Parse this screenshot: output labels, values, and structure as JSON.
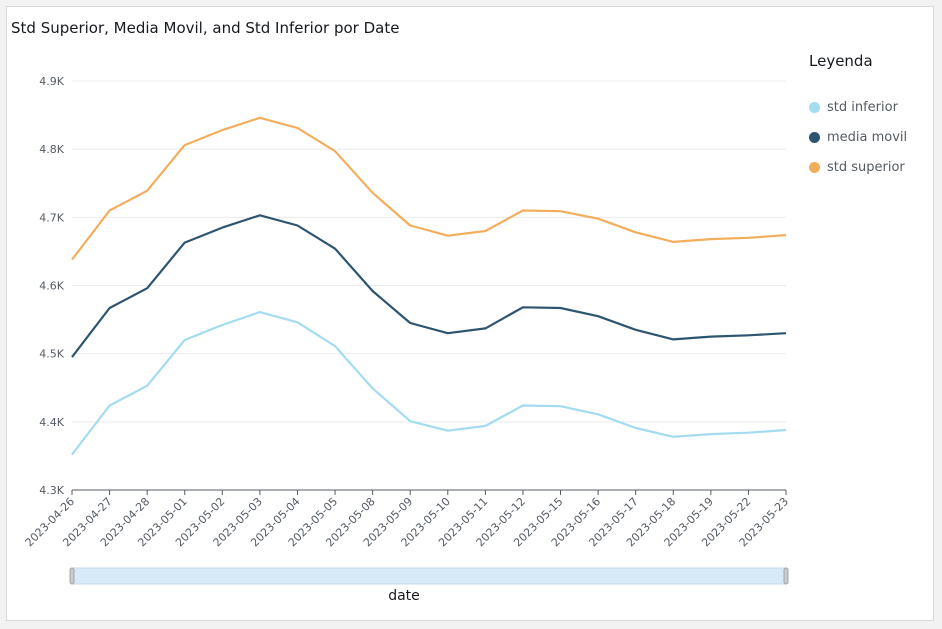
{
  "chart_data": {
    "type": "line",
    "title": "Std Superior, Media Movil, and Std Inferior por Date",
    "xlabel": "date",
    "ylabel": "",
    "categories": [
      "2023-04-26",
      "2023-04-27",
      "2023-04-28",
      "2023-05-01",
      "2023-05-02",
      "2023-05-03",
      "2023-05-04",
      "2023-05-05",
      "2023-05-08",
      "2023-05-09",
      "2023-05-10",
      "2023-05-11",
      "2023-05-12",
      "2023-05-15",
      "2023-05-16",
      "2023-05-17",
      "2023-05-18",
      "2023-05-19",
      "2023-05-22",
      "2023-05-23"
    ],
    "ylim": [
      4300,
      4900
    ],
    "yticks": [
      4300,
      4400,
      4500,
      4600,
      4700,
      4800,
      4900
    ],
    "ytick_labels": [
      "4.3K",
      "4.4K",
      "4.5K",
      "4.6K",
      "4.7K",
      "4.8K",
      "4.9K"
    ],
    "grid": true,
    "legend_position": "right",
    "legend_title": "Leyenda",
    "series": [
      {
        "name": "std inferior",
        "color": "#a3dcf0",
        "values": [
          4352,
          4424,
          4453,
          4520,
          4542,
          4561,
          4546,
          4511,
          4449,
          4401,
          4387,
          4394,
          4424,
          4423,
          4411,
          4391,
          4378,
          4382,
          4384,
          4388
        ]
      },
      {
        "name": "media movil",
        "color": "#2e5570",
        "values": [
          4495,
          4567,
          4596,
          4663,
          4685,
          4703,
          4688,
          4654,
          4592,
          4545,
          4530,
          4537,
          4568,
          4567,
          4555,
          4535,
          4521,
          4525,
          4527,
          4530
        ]
      },
      {
        "name": "std superior",
        "color": "#f2ae5c",
        "values": [
          4638,
          4710,
          4739,
          4806,
          4828,
          4846,
          4831,
          4797,
          4736,
          4688,
          4673,
          4680,
          4710,
          4709,
          4698,
          4678,
          4664,
          4668,
          4670,
          4674
        ]
      }
    ]
  },
  "scrollbar_color": "#d6eaf8"
}
